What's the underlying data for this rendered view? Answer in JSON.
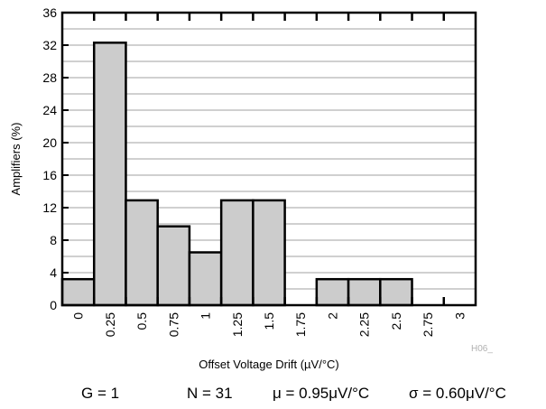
{
  "chart_data": {
    "type": "bar",
    "title": "",
    "xlabel": "Offset Voltage Drift (µV/°C)",
    "ylabel": "Amplifiers (%)",
    "categories": [
      "0",
      "0.25",
      "0.5",
      "0.75",
      "1",
      "1.25",
      "1.5",
      "1.75",
      "2",
      "2.25",
      "2.5",
      "2.75",
      "3"
    ],
    "values": [
      3.2,
      32.3,
      12.9,
      9.7,
      6.5,
      12.9,
      12.9,
      0,
      3.2,
      3.2,
      3.2,
      0,
      0
    ],
    "ylim": [
      0,
      36
    ],
    "yticks": [
      0,
      4,
      8,
      12,
      16,
      20,
      24,
      28,
      32,
      36
    ],
    "grid": true,
    "bar_color": "#cccccc",
    "grid_color": "#b3b3b3",
    "code": "H06_"
  },
  "stats": {
    "gain": "G = 1",
    "n": "N = 31",
    "mean": "μ = 0.95μV/°C",
    "sigma": "σ = 0.60μV/°C"
  }
}
